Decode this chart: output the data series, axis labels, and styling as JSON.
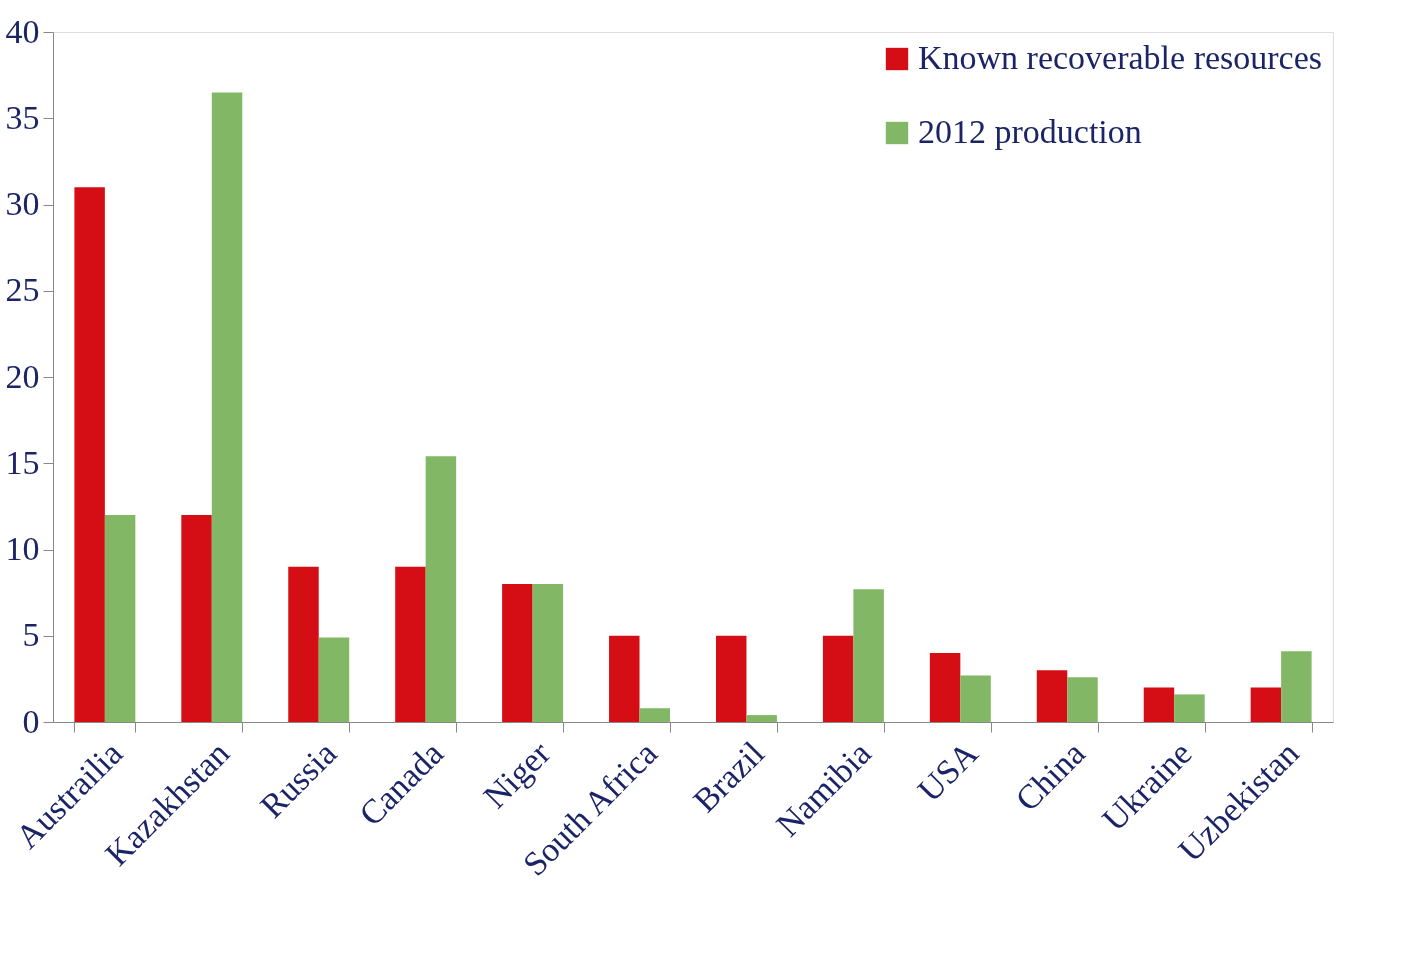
{
  "chart_data": {
    "type": "bar",
    "categories": [
      "Austrailia",
      "Kazakhstan",
      "Russia",
      "Canada",
      "Niger",
      "South Africa",
      "Brazil",
      "Namibia",
      "USA",
      "China",
      "Ukraine",
      "Uzbekistan"
    ],
    "series": [
      {
        "name": "Known recoverable resources",
        "color": "#d40e14",
        "values": [
          31,
          12,
          9,
          9,
          8,
          5,
          5,
          5,
          4,
          3,
          2,
          2
        ]
      },
      {
        "name": "2012 production",
        "color": "#82b865",
        "values": [
          12,
          36.5,
          4.9,
          15.4,
          8,
          0.8,
          0.4,
          7.7,
          2.7,
          2.6,
          1.6,
          4.1
        ]
      }
    ],
    "ylim": [
      0,
      40
    ],
    "yticks": [
      0,
      5,
      10,
      15,
      20,
      25,
      30,
      35,
      40
    ],
    "grid": false,
    "legend": "top right"
  }
}
